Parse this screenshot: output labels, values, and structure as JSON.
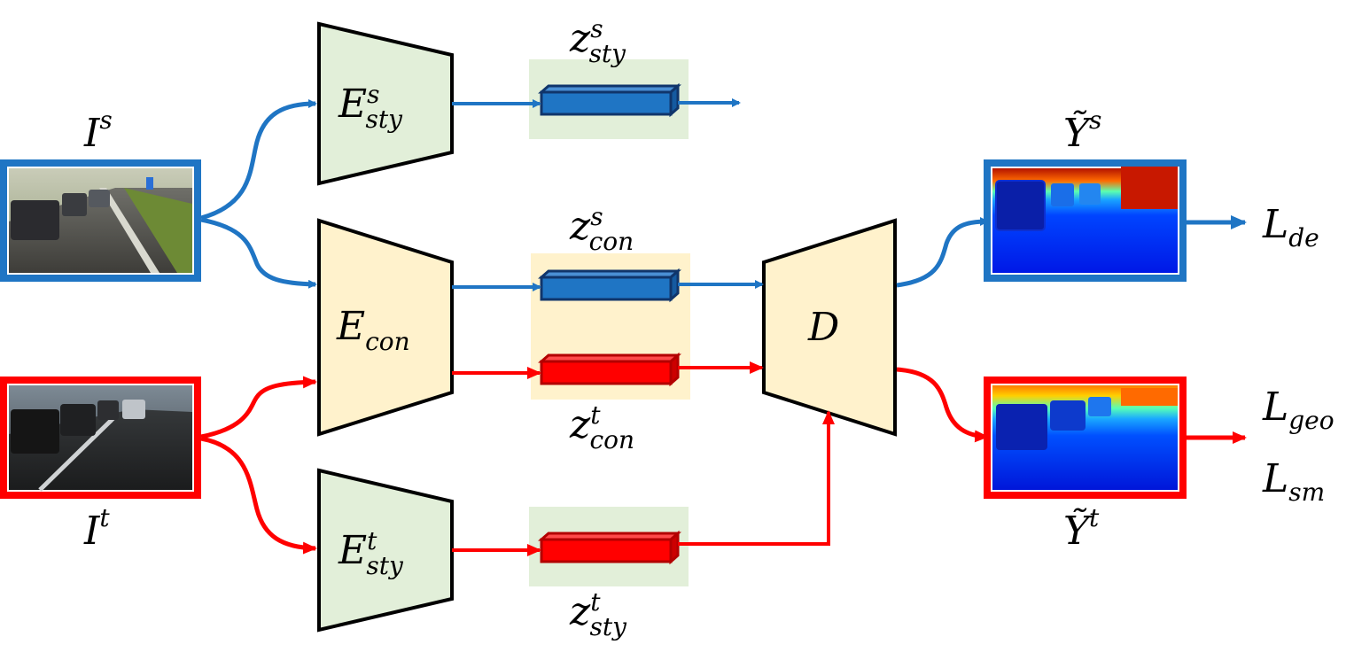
{
  "colors": {
    "source": "#1f75c4",
    "target": "#ff0000",
    "style_encoder_fill": "#e2efd9",
    "content_encoder_fill": "#fff2cc",
    "style_code_bg": "#e2efd9",
    "content_code_bg": "#fff2cc",
    "blue_bar": "#1f75c4",
    "blue_bar_edge": "#10356b",
    "red_bar": "#ff0000",
    "red_bar_edge": "#b30000"
  },
  "inputs": {
    "source": {
      "base": "I",
      "sup": "s"
    },
    "target": {
      "base": "I",
      "sup": "t"
    }
  },
  "encoders": {
    "style_source": {
      "base": "E",
      "sup": "s",
      "sub": "sty"
    },
    "content": {
      "base": "E",
      "sub": "con"
    },
    "style_target": {
      "base": "E",
      "sup": "t",
      "sub": "sty"
    }
  },
  "decoder": {
    "label": "D"
  },
  "codes": {
    "z_sty_s": {
      "base": "z",
      "sup": "s",
      "sub": "sty"
    },
    "z_con_s": {
      "base": "z",
      "sup": "s",
      "sub": "con"
    },
    "z_con_t": {
      "base": "z",
      "sup": "t",
      "sub": "con"
    },
    "z_sty_t": {
      "base": "z",
      "sup": "t",
      "sub": "sty"
    }
  },
  "outputs": {
    "source": {
      "base": "Ỹ",
      "sup": "s"
    },
    "target": {
      "base": "Ỹ",
      "sup": "t"
    }
  },
  "losses": {
    "de": {
      "base": "L",
      "sub": "de"
    },
    "geo": {
      "base": "L",
      "sub": "geo"
    },
    "sm": {
      "base": "L",
      "sub": "sm"
    }
  }
}
